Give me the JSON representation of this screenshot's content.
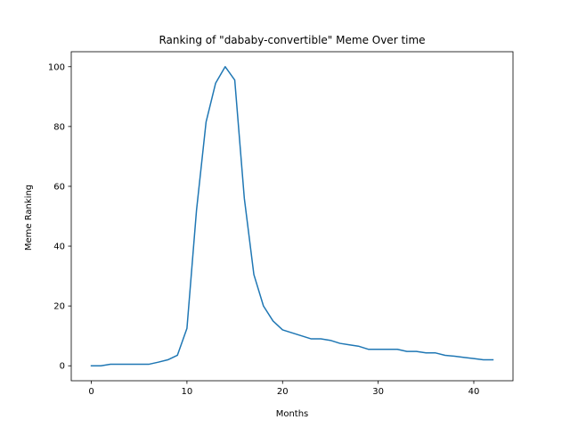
{
  "chart_data": {
    "type": "line",
    "title": "Ranking of \"dababy-convertible\" Meme Over time",
    "xlabel": "Months",
    "ylabel": "Meme Ranking",
    "xlim": [
      -2.1,
      44.1
    ],
    "ylim": [
      -5,
      105
    ],
    "xticks": [
      0,
      10,
      20,
      30,
      40
    ],
    "yticks": [
      0,
      20,
      40,
      60,
      80,
      100
    ],
    "grid": false,
    "line_color": "#1f77b4",
    "series": [
      {
        "x": [
          0,
          1,
          2,
          3,
          4,
          5,
          6,
          7,
          8,
          9,
          10,
          11,
          12,
          13,
          14,
          15,
          16,
          17,
          18,
          19,
          20,
          21,
          22,
          23,
          24,
          25,
          26,
          27,
          28,
          29,
          30,
          31,
          32,
          33,
          34,
          35,
          36,
          37,
          38,
          39,
          40,
          41,
          42
        ],
        "values": [
          0,
          0,
          0.5,
          0.5,
          0.5,
          0.5,
          0.5,
          1.2,
          2,
          3.5,
          12.5,
          52,
          81.5,
          94.5,
          100,
          95.5,
          56,
          30.5,
          20,
          15,
          12,
          11,
          10,
          9,
          9,
          8.5,
          7.5,
          7,
          6.5,
          5.5,
          5.5,
          5.5,
          5.5,
          4.8,
          4.8,
          4.3,
          4.3,
          3.5,
          3.2,
          2.8,
          2.4,
          2,
          2
        ]
      }
    ]
  }
}
